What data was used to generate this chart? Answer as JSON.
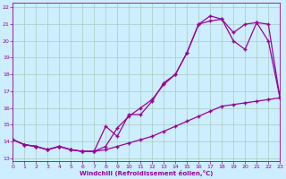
{
  "xlabel": "Windchill (Refroidissement éolien,°C)",
  "bg_color": "#cceeff",
  "grid_color": "#aaccbb",
  "line_color": "#990099",
  "x_ticks": [
    0,
    1,
    2,
    3,
    4,
    5,
    6,
    7,
    8,
    9,
    10,
    11,
    12,
    13,
    14,
    15,
    16,
    17,
    18,
    19,
    20,
    21,
    22,
    23
  ],
  "y_ticks": [
    13,
    14,
    15,
    16,
    17,
    18,
    19,
    20,
    21,
    22
  ],
  "xlim": [
    0,
    23
  ],
  "ylim": [
    12.8,
    22.3
  ],
  "line1_x": [
    0,
    1,
    2,
    3,
    4,
    5,
    6,
    7,
    8,
    9,
    10,
    11,
    12,
    13,
    14,
    15,
    16,
    17,
    18,
    19,
    20,
    21,
    22,
    23
  ],
  "line1_y": [
    14.1,
    13.8,
    13.7,
    13.5,
    13.7,
    13.5,
    13.4,
    13.4,
    13.5,
    13.7,
    13.9,
    14.1,
    14.3,
    14.6,
    14.9,
    15.2,
    15.5,
    15.8,
    16.1,
    16.2,
    16.3,
    16.4,
    16.5,
    16.6
  ],
  "line2_x": [
    0,
    1,
    2,
    3,
    4,
    5,
    6,
    7,
    8,
    9,
    10,
    11,
    12,
    13,
    14,
    15,
    16,
    17,
    18,
    19,
    20,
    21,
    22,
    23
  ],
  "line2_y": [
    14.1,
    13.8,
    13.7,
    13.5,
    13.7,
    13.5,
    13.4,
    13.4,
    14.9,
    14.3,
    15.6,
    15.6,
    16.4,
    17.5,
    18.0,
    19.3,
    21.0,
    21.2,
    21.3,
    20.0,
    19.5,
    21.1,
    20.0,
    16.6
  ],
  "line3_x": [
    0,
    1,
    2,
    3,
    4,
    5,
    6,
    7,
    8,
    9,
    10,
    11,
    12,
    13,
    14,
    15,
    16,
    17,
    18,
    19,
    20,
    21,
    22,
    23
  ],
  "line3_y": [
    14.1,
    13.8,
    13.7,
    13.5,
    13.7,
    13.5,
    13.4,
    13.4,
    13.7,
    14.8,
    15.5,
    16.0,
    16.5,
    17.4,
    18.0,
    19.3,
    21.0,
    21.5,
    21.3,
    20.5,
    21.0,
    21.1,
    21.0,
    16.6
  ]
}
